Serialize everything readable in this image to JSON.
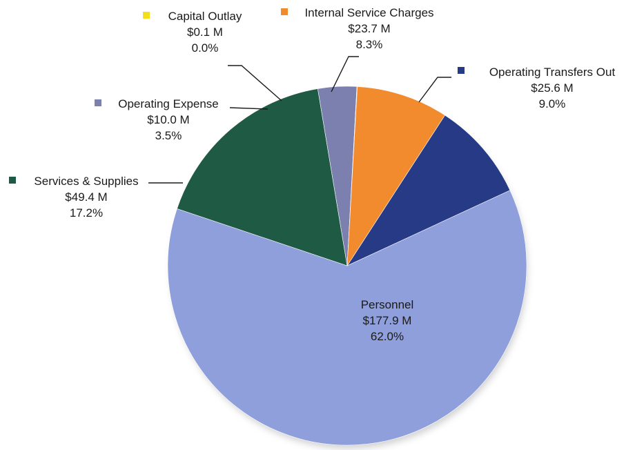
{
  "chart_data": {
    "type": "pie",
    "title": "",
    "unit_prefix": "$",
    "unit_suffix": " M",
    "slices": [
      {
        "name": "Operating Transfers Out",
        "value": 25.6,
        "percent": 9.0,
        "color": "#273a86",
        "value_label": "$25.6 M",
        "percent_label": "9.0%"
      },
      {
        "name": "Personnel",
        "value": 177.9,
        "percent": 62.0,
        "color": "#8f9fdb",
        "value_label": "$177.9 M",
        "percent_label": "62.0%"
      },
      {
        "name": "Services & Supplies",
        "value": 49.4,
        "percent": 17.2,
        "color": "#1f5a45",
        "value_label": "$49.4 M",
        "percent_label": "17.2%"
      },
      {
        "name": "Operating Expense",
        "value": 10.0,
        "percent": 3.5,
        "color": "#7b80ae",
        "value_label": "$10.0 M",
        "percent_label": "3.5%"
      },
      {
        "name": "Capital Outlay",
        "value": 0.1,
        "percent": 0.0,
        "color": "#f2e020",
        "value_label": "$0.1 M",
        "percent_label": "0.0%"
      },
      {
        "name": "Internal Service Charges",
        "value": 23.7,
        "percent": 8.3,
        "color": "#f28a2e",
        "value_label": "$23.7 M",
        "percent_label": "8.3%"
      }
    ]
  }
}
